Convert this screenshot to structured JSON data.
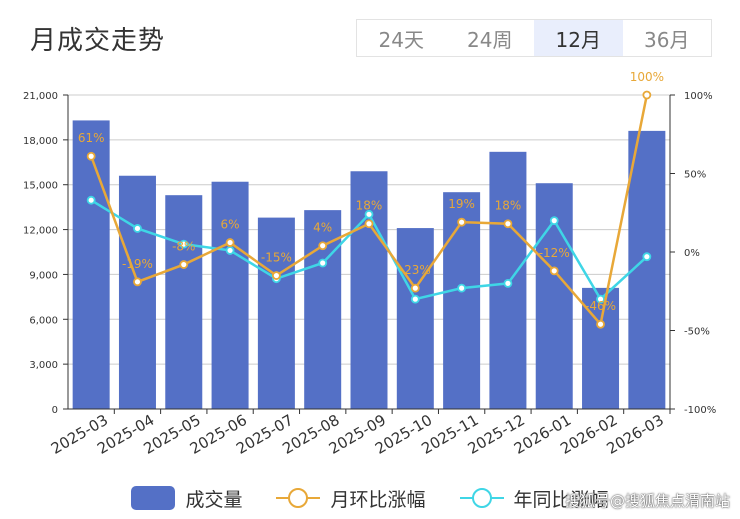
{
  "title": "月成交走势",
  "tabs": [
    {
      "label": "24天",
      "active": false
    },
    {
      "label": "24周",
      "active": false
    },
    {
      "label": "12月",
      "active": true
    },
    {
      "label": "36月",
      "active": false
    }
  ],
  "legend": {
    "volume": "成交量",
    "mom": "月环比涨幅",
    "yoy": "年同比涨幅"
  },
  "watermark": "搜狐号@搜狐焦点渭南站",
  "colors": {
    "bar": "#5470c6",
    "mom": "#e8a838",
    "yoy": "#3fd6e6",
    "grid": "#cccccc",
    "axis": "#333333"
  },
  "chart_data": {
    "type": "bar",
    "categories": [
      "2025-03",
      "2025-04",
      "2025-05",
      "2025-06",
      "2025-07",
      "2025-08",
      "2025-09",
      "2025-10",
      "2025-11",
      "2025-12",
      "2026-01",
      "2026-02",
      "2026-03"
    ],
    "left_axis": {
      "min": 0,
      "max": 21000,
      "ticks": [
        "0",
        "3,000",
        "6,000",
        "9,000",
        "12,000",
        "15,000",
        "18,000",
        "21,000"
      ]
    },
    "right_axis": {
      "min": -100,
      "max": 100,
      "ticks": [
        "-100%",
        "-50%",
        "0%",
        "50%",
        "100%"
      ]
    },
    "grid": true,
    "legend_position": "bottom",
    "series": [
      {
        "name": "成交量",
        "type": "bar",
        "values": [
          19300,
          15600,
          14300,
          15200,
          12800,
          13300,
          15900,
          12100,
          14500,
          17200,
          15100,
          8100,
          18600
        ]
      },
      {
        "name": "月环比涨幅",
        "type": "line",
        "axis": "right",
        "values": [
          61,
          -19,
          -8,
          6,
          -15,
          4,
          18,
          -23,
          19,
          18,
          -12,
          -46,
          100
        ],
        "labels": [
          "61%",
          "-19%",
          "-8%",
          "6%",
          "-15%",
          "4%",
          "18%",
          "-23%",
          "19%",
          "18%",
          "-12%",
          "-46%",
          "100%"
        ]
      },
      {
        "name": "年同比涨幅",
        "type": "line",
        "axis": "right",
        "values": [
          33,
          15,
          5,
          1,
          -17,
          -7,
          24,
          -30,
          -23,
          -20,
          20,
          -30,
          -3
        ]
      }
    ]
  }
}
